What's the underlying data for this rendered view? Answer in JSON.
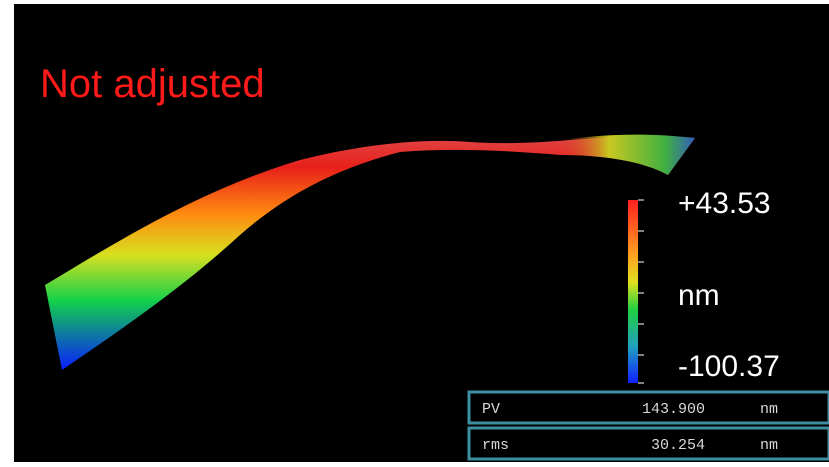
{
  "header": {
    "title": "Not adjusted"
  },
  "colorbar": {
    "max_label": "+43.53",
    "unit": "nm",
    "min_label": "-100.37"
  },
  "table": {
    "rows": [
      [
        "PV",
        "143.900",
        "nm"
      ],
      [
        "rms",
        "30.254",
        "nm"
      ]
    ]
  }
}
